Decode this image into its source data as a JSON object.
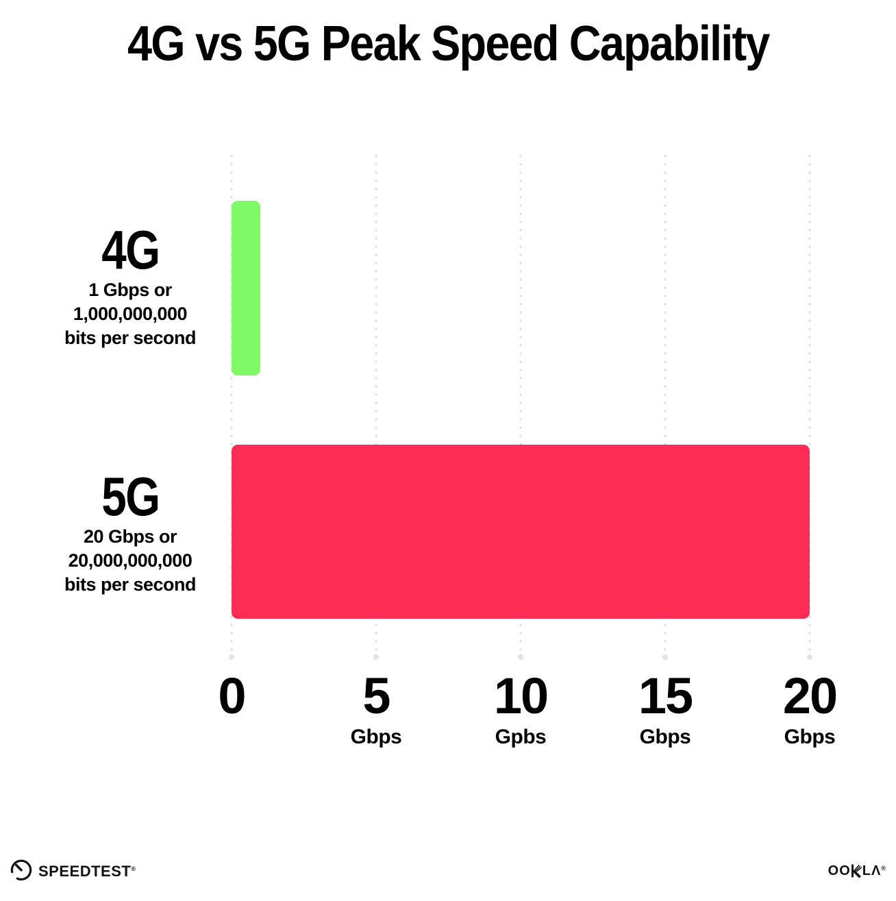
{
  "title": "4G vs 5G Peak Speed Capability",
  "chart_data": {
    "type": "bar",
    "orientation": "horizontal",
    "title": "4G vs 5G Peak Speed Capability",
    "categories": [
      "4G",
      "5G"
    ],
    "values": [
      1,
      20
    ],
    "unit": "Gbps",
    "value_descriptions": [
      [
        "1 Gbps or",
        "1,000,000,000",
        "bits per second"
      ],
      [
        "20 Gbps or",
        "20,000,000,000",
        "bits per second"
      ]
    ],
    "colors": [
      "#80F966",
      "#FE2D55"
    ],
    "xlim": [
      0,
      20
    ],
    "x_tick_values": [
      0,
      5,
      10,
      15,
      20
    ],
    "x_tick_labels": [
      "0",
      "5",
      "10",
      "15",
      "20"
    ],
    "x_tick_units": [
      "",
      "Gbps",
      "Gpbs",
      "Gbps",
      "Gbps"
    ],
    "grid": "vertical-dotted",
    "legend": "none"
  },
  "palette": {
    "bar_4g": "#80F966",
    "bar_5g": "#FE2D55",
    "grid_dot": "#DFE2EC",
    "text": "#000000",
    "background": "#FFFFFF",
    "logo": "#141414"
  },
  "footer": {
    "speedtest_label": "SPEEDTEST",
    "speedtest_mark": "®",
    "ookla_label": "OOKLA",
    "ookla_part_left": "OO",
    "ookla_part_right": "LΛ",
    "ookla_mark": "®"
  }
}
